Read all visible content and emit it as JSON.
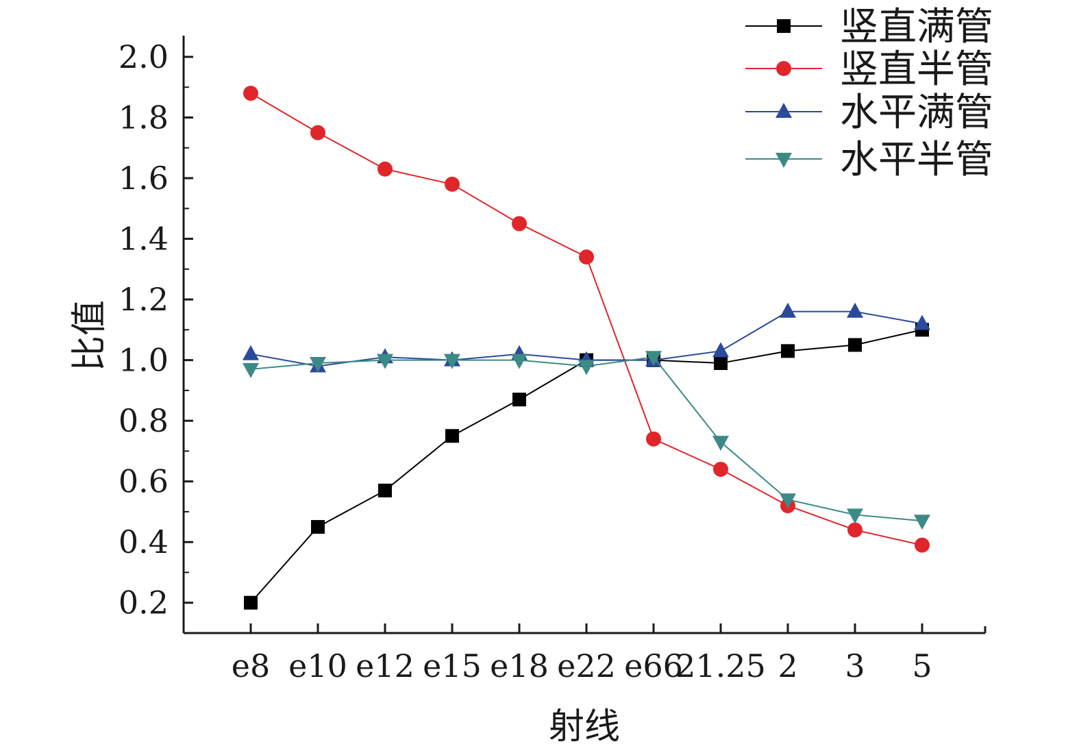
{
  "chart_data": {
    "type": "line",
    "title": "",
    "xlabel": "射线",
    "ylabel": "比值",
    "categories": [
      "e8",
      "e10",
      "e12",
      "e15",
      "e18",
      "e22",
      "e66",
      "21.25",
      "2",
      "3",
      "5"
    ],
    "ylim": [
      0.1,
      2.07
    ],
    "yticks": [
      "0.2",
      "0.4",
      "0.6",
      "0.8",
      "1.0",
      "1.2",
      "1.4",
      "1.6",
      "1.8",
      "2.0"
    ],
    "grid": false,
    "legend_position": "top-right",
    "series": [
      {
        "name": "竖直满管",
        "color": "#000000",
        "marker": "square",
        "values": [
          0.2,
          0.45,
          0.57,
          0.75,
          0.87,
          1.0,
          1.0,
          0.99,
          1.03,
          1.05,
          1.1
        ]
      },
      {
        "name": "竖直半管",
        "color": "#e0262b",
        "marker": "circle",
        "values": [
          1.88,
          1.75,
          1.63,
          1.58,
          1.45,
          1.34,
          0.74,
          0.64,
          0.52,
          0.44,
          0.39
        ]
      },
      {
        "name": "水平满管",
        "color": "#2b4a9c",
        "marker": "triangle-up",
        "values": [
          1.02,
          0.98,
          1.01,
          1.0,
          1.02,
          1.0,
          1.0,
          1.03,
          1.16,
          1.16,
          1.12
        ]
      },
      {
        "name": "水平半管",
        "color": "#3c8a86",
        "marker": "triangle-down",
        "values": [
          0.97,
          0.99,
          1.0,
          1.0,
          1.0,
          0.98,
          1.01,
          0.73,
          0.54,
          0.49,
          0.47
        ]
      }
    ]
  }
}
